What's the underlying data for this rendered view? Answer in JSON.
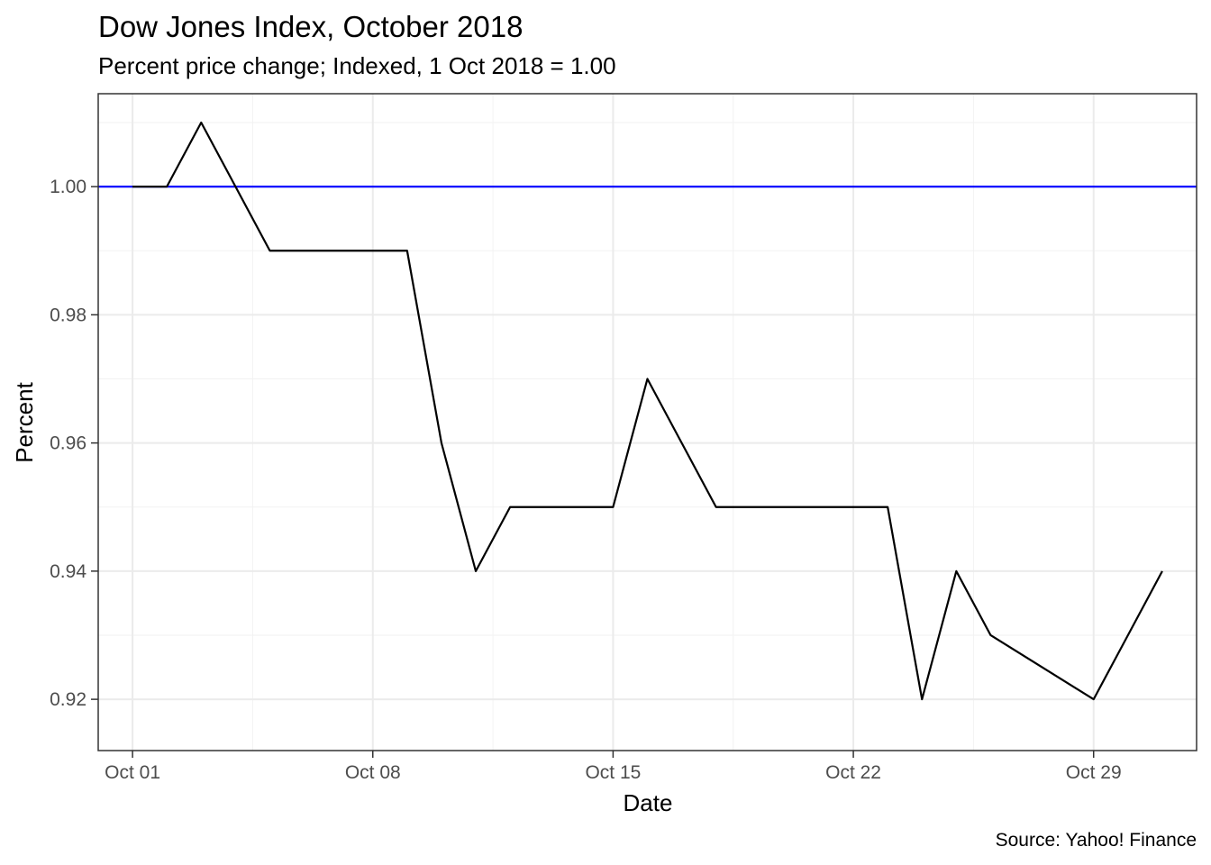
{
  "chart_data": {
    "type": "line",
    "title": "Dow Jones Index, October 2018",
    "subtitle": "Percent price change; Indexed, 1 Oct 2018 = 1.00",
    "xlabel": "Date",
    "ylabel": "Percent",
    "caption": "Source: Yahoo! Finance",
    "x_ticks": [
      "Oct 01",
      "Oct 08",
      "Oct 15",
      "Oct 22",
      "Oct 29"
    ],
    "y_ticks": [
      "0.92",
      "0.94",
      "0.96",
      "0.98",
      "1.00"
    ],
    "xlim": [
      "2018-09-30",
      "2018-11-01"
    ],
    "ylim": [
      0.912,
      1.0145
    ],
    "grid": true,
    "reference_line": {
      "y": 1.0,
      "color": "#0000ff"
    },
    "series": [
      {
        "color": "#000000",
        "x": [
          "2018-10-01",
          "2018-10-02",
          "2018-10-03",
          "2018-10-04",
          "2018-10-05",
          "2018-10-08",
          "2018-10-09",
          "2018-10-10",
          "2018-10-11",
          "2018-10-12",
          "2018-10-15",
          "2018-10-16",
          "2018-10-17",
          "2018-10-18",
          "2018-10-19",
          "2018-10-22",
          "2018-10-23",
          "2018-10-24",
          "2018-10-25",
          "2018-10-26",
          "2018-10-29",
          "2018-10-30",
          "2018-10-31"
        ],
        "values": [
          1.0,
          1.0,
          1.01,
          1.0,
          0.99,
          0.99,
          0.99,
          0.96,
          0.94,
          0.95,
          0.95,
          0.97,
          0.96,
          0.95,
          0.95,
          0.95,
          0.95,
          0.92,
          0.94,
          0.93,
          0.92,
          0.93,
          0.94
        ]
      }
    ]
  }
}
